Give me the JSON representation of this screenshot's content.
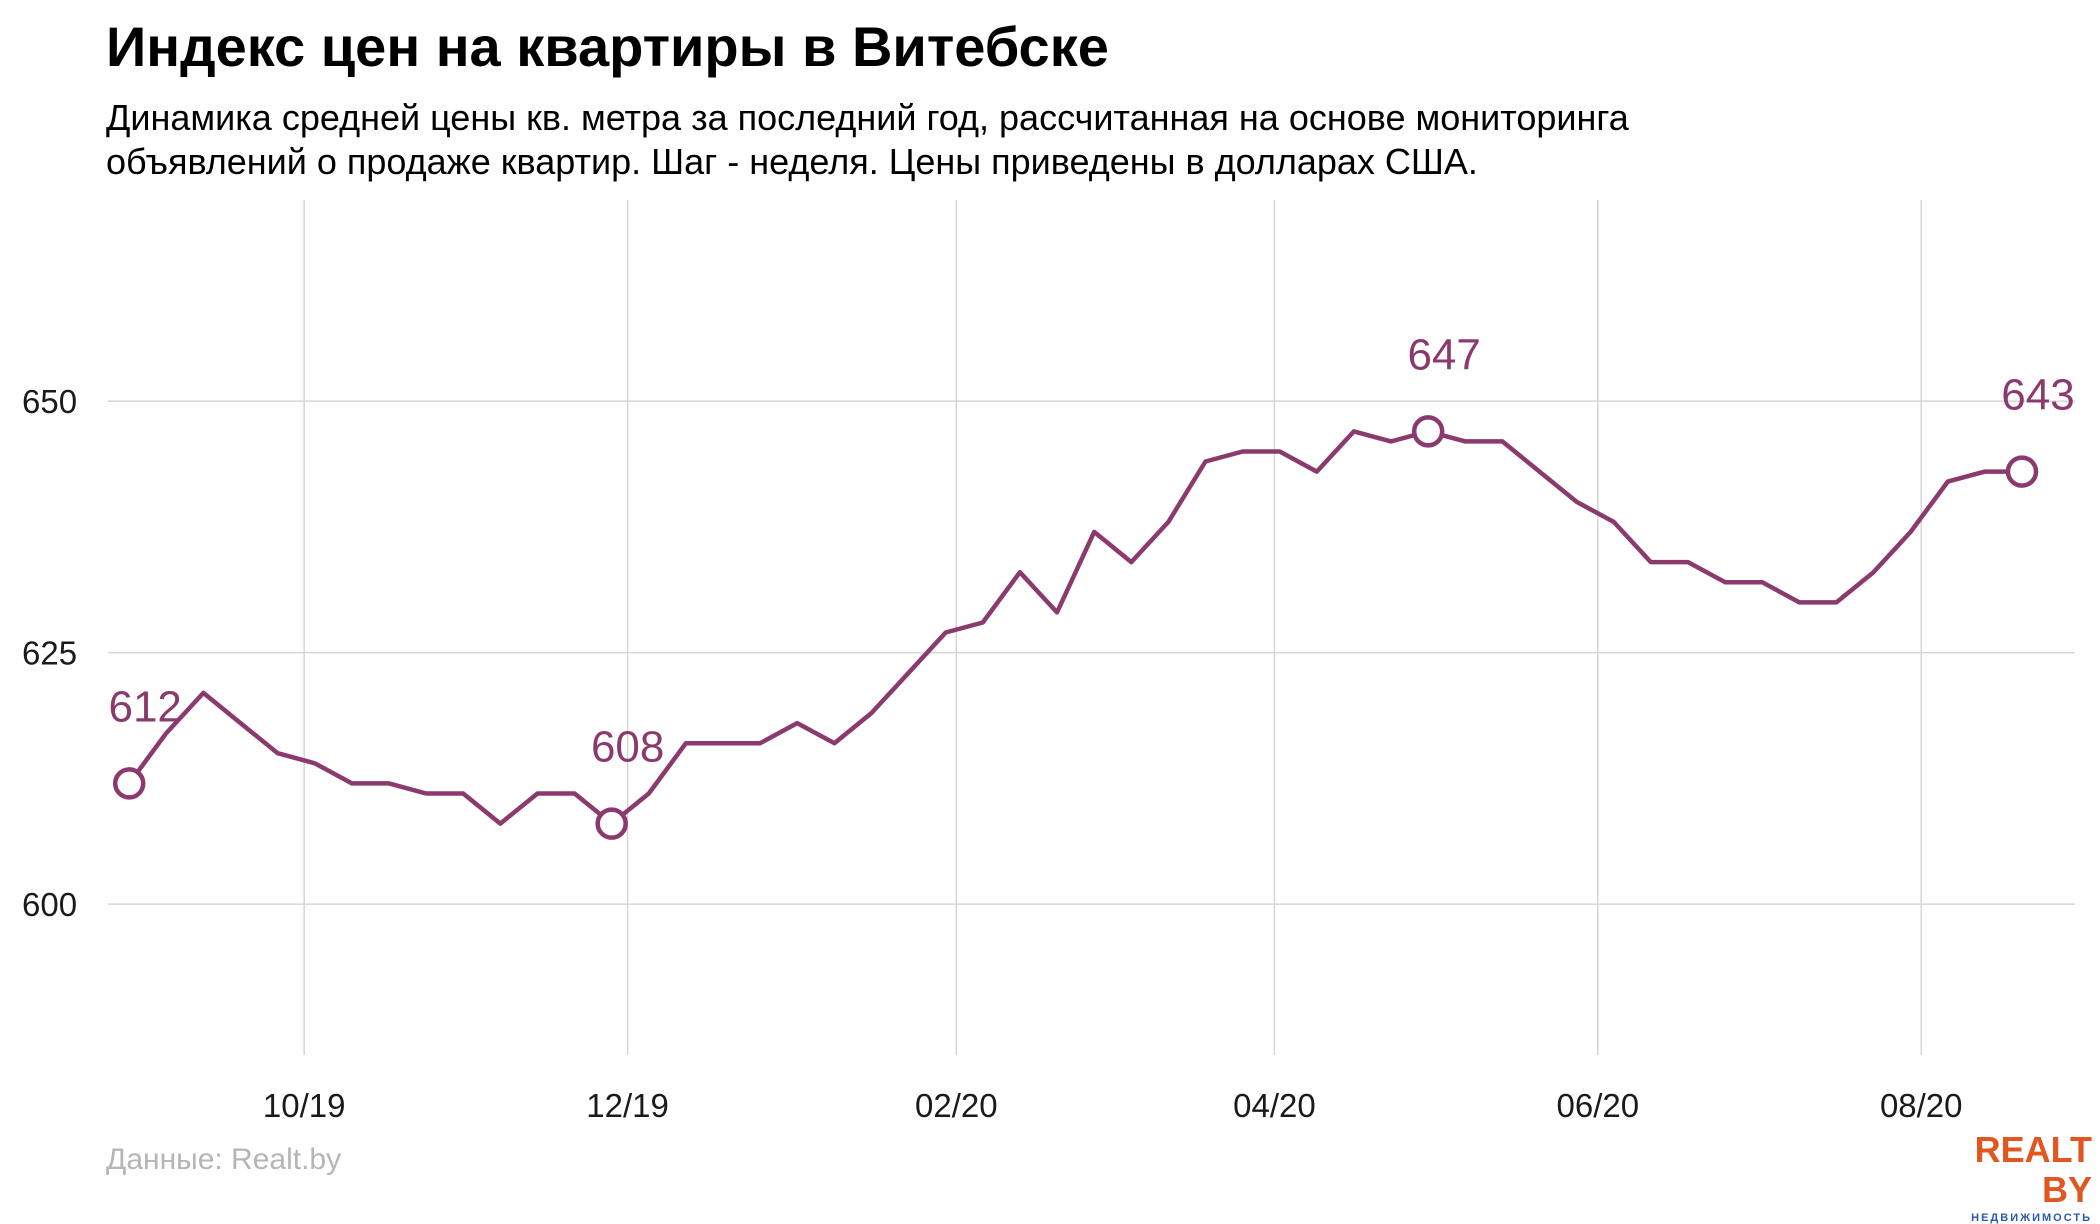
{
  "header": {
    "title": "Индекс цен на квартиры в Витебске",
    "subtitle_line1": "Динамика средней цены кв. метра за последний год, рассчитанная на основе мониторинга",
    "subtitle_line2": "объявлений о продаже квартир. Шаг - неделя. Цены приведены в долларах США."
  },
  "footer": {
    "source": "Данные: Realt.by",
    "logo_main": "REALT BY",
    "logo_sub": "НЕДВИЖИМОСТЬ"
  },
  "colors": {
    "line": "#8b3a6d",
    "grid": "#d6d6d6",
    "marker_fill": "#ffffff"
  },
  "chart_data": {
    "type": "line",
    "title": "Индекс цен на квартиры в Витебске",
    "xlabel": "",
    "ylabel": "",
    "x_axis_type": "date",
    "xlim": [
      "2019-08-25",
      "2020-08-30"
    ],
    "ylim": [
      585,
      670
    ],
    "grid": true,
    "legend": "none",
    "x_ticks": [
      {
        "date": "2019-10-01",
        "label": "10/19"
      },
      {
        "date": "2019-12-01",
        "label": "12/19"
      },
      {
        "date": "2020-02-01",
        "label": "02/20"
      },
      {
        "date": "2020-04-01",
        "label": "04/20"
      },
      {
        "date": "2020-06-01",
        "label": "06/20"
      },
      {
        "date": "2020-08-01",
        "label": "08/20"
      }
    ],
    "y_ticks": [
      600,
      625,
      650
    ],
    "series": [
      {
        "x": [
          "2019-08-29",
          "2019-09-05",
          "2019-09-12",
          "2019-09-19",
          "2019-09-26",
          "2019-10-03",
          "2019-10-10",
          "2019-10-17",
          "2019-10-24",
          "2019-10-31",
          "2019-11-07",
          "2019-11-14",
          "2019-11-21",
          "2019-11-28",
          "2019-12-05",
          "2019-12-12",
          "2019-12-19",
          "2019-12-26",
          "2020-01-02",
          "2020-01-09",
          "2020-01-16",
          "2020-01-23",
          "2020-01-30",
          "2020-02-06",
          "2020-02-13",
          "2020-02-20",
          "2020-02-27",
          "2020-03-05",
          "2020-03-12",
          "2020-03-19",
          "2020-03-26",
          "2020-04-02",
          "2020-04-09",
          "2020-04-16",
          "2020-04-23",
          "2020-04-30",
          "2020-05-07",
          "2020-05-14",
          "2020-05-21",
          "2020-05-28",
          "2020-06-04",
          "2020-06-11",
          "2020-06-18",
          "2020-06-25",
          "2020-07-02",
          "2020-07-09",
          "2020-07-16",
          "2020-07-23",
          "2020-07-30",
          "2020-08-06",
          "2020-08-13",
          "2020-08-20"
        ],
        "values": [
          612,
          617,
          621,
          618,
          615,
          614,
          612,
          612,
          611,
          611,
          608,
          611,
          611,
          608,
          611,
          616,
          616,
          616,
          618,
          616,
          619,
          623,
          627,
          628,
          633,
          629,
          637,
          634,
          638,
          644,
          645,
          645,
          643,
          647,
          646,
          647,
          646,
          646,
          643,
          640,
          638,
          634,
          634,
          632,
          632,
          630,
          630,
          633,
          637,
          642,
          643,
          643
        ]
      }
    ],
    "annotations": [
      {
        "x": "2019-08-29",
        "y": 612,
        "label": "612"
      },
      {
        "x": "2019-11-28",
        "y": 608,
        "label": "608"
      },
      {
        "x": "2020-04-30",
        "y": 647,
        "label": "647"
      },
      {
        "x": "2020-08-20",
        "y": 643,
        "label": "643"
      }
    ]
  }
}
